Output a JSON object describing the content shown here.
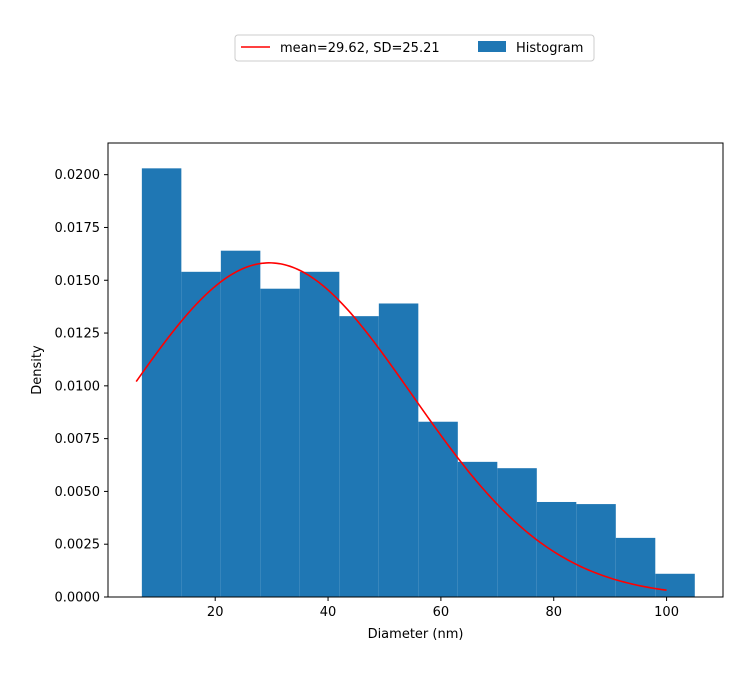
{
  "chart_data": {
    "type": "bar",
    "xlabel": "Diameter (nm)",
    "ylabel": "Density",
    "xlim": [
      1,
      110
    ],
    "ylim": [
      0,
      0.0215
    ],
    "xticks": [
      20,
      40,
      60,
      80,
      100
    ],
    "xtick_labels": [
      "20",
      "40",
      "60",
      "80",
      "100"
    ],
    "yticks": [
      0,
      0.0025,
      0.005,
      0.0075,
      0.01,
      0.0125,
      0.015,
      0.0175,
      0.02
    ],
    "ytick_labels": [
      "0.0000",
      "0.0025",
      "0.0050",
      "0.0075",
      "0.0100",
      "0.0125",
      "0.0150",
      "0.0175",
      "0.0200"
    ],
    "bins": [
      7.0,
      14.0,
      21.0,
      28.0,
      35.0,
      42.0,
      49.0,
      56.0,
      63.0,
      70.0,
      77.0,
      84.0,
      91.0,
      98.0,
      105.0
    ],
    "series": [
      {
        "name": "Histogram",
        "kind": "histogram",
        "color": "#1f77b4",
        "values": [
          0.0203,
          0.0154,
          0.0164,
          0.0146,
          0.0154,
          0.0133,
          0.0139,
          0.0083,
          0.0064,
          0.0061,
          0.0045,
          0.0044,
          0.0028,
          0.0011
        ]
      },
      {
        "name": "mean=29.62, SD=25.21",
        "kind": "normal-pdf-line",
        "color": "#ff0000",
        "mean": 29.62,
        "sd": 25.21,
        "x_range": [
          6,
          100
        ]
      }
    ],
    "legend": {
      "placement": "top-center",
      "entries": [
        "mean=29.62, SD=25.21",
        "Histogram"
      ]
    },
    "grid": false
  }
}
